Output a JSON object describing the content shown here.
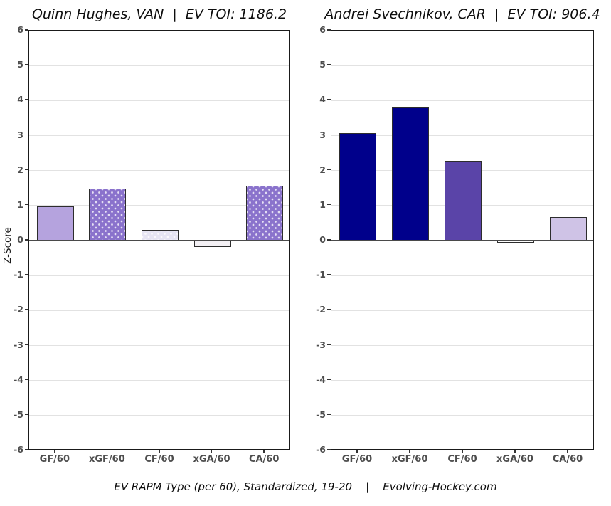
{
  "caption": "EV RAPM Type (per 60), Standardized, 19-20    |    Evolving-Hockey.com",
  "colors": {
    "background": "#ffffff",
    "panel_border": "#1a1a1a",
    "grid": "#e2e2e2",
    "zero_line": "#4a4a4a",
    "axis_text": "#4d4d4d",
    "bar_border": "#2d2d2d",
    "navy": "#00008b",
    "medium_purple": "#5a44a8",
    "light_purple": "#b5a3de",
    "mid_purple_dotted": "#8a72cc",
    "pale_lavender": "#e6e4f3",
    "near_white_lavender": "#f3f0f4",
    "light_lavender": "#cfc3e6"
  },
  "chart_data": [
    {
      "type": "bar",
      "title": "Quinn Hughes, VAN  |  EV TOI: 1186.2",
      "categories": [
        "GF/60",
        "xGF/60",
        "CF/60",
        "xGA/60",
        "CA/60"
      ],
      "values": [
        0.97,
        1.48,
        0.31,
        -0.18,
        1.57
      ],
      "bar_colors": [
        "#b5a3de",
        "#8a72cc",
        "#e6e4f3",
        "#f3f0f4",
        "#8a73cc"
      ],
      "bar_patterns": [
        "solid",
        "dots",
        "dots",
        "solid",
        "dots"
      ],
      "xlabel": "",
      "ylabel": "Z-Score",
      "ylim": [
        -6,
        6
      ],
      "yticks": [
        6,
        5,
        4,
        3,
        2,
        1,
        0,
        -1,
        -2,
        -3,
        -4,
        -5,
        -6
      ],
      "grid": true,
      "legend": "none"
    },
    {
      "type": "bar",
      "title": "Andrei Svechnikov, CAR  |  EV TOI: 906.4",
      "categories": [
        "GF/60",
        "xGF/60",
        "CF/60",
        "xGA/60",
        "CA/60"
      ],
      "values": [
        3.07,
        3.8,
        2.28,
        -0.07,
        0.68
      ],
      "bar_colors": [
        "#00008b",
        "#00008b",
        "#5a44a8",
        "#ffffff",
        "#cfc3e6"
      ],
      "bar_patterns": [
        "solid",
        "solid",
        "solid",
        "solid",
        "solid"
      ],
      "xlabel": "",
      "ylabel": "",
      "ylim": [
        -6,
        6
      ],
      "yticks": [
        6,
        5,
        4,
        3,
        2,
        1,
        0,
        -1,
        -2,
        -3,
        -4,
        -5,
        -6
      ],
      "grid": true,
      "legend": "none"
    }
  ]
}
